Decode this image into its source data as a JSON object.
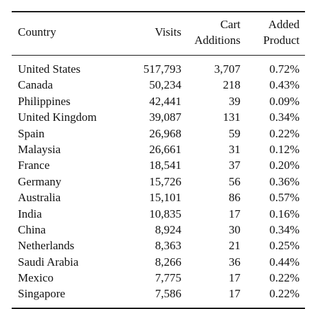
{
  "table": {
    "headers": {
      "country": "Country",
      "visits": "Visits",
      "cart_line1": "Cart",
      "cart_line2": "Additions",
      "added_line1": "Added",
      "added_line2": "Product"
    },
    "rows": [
      {
        "country": "United States",
        "visits": "517,793",
        "cart": "3,707",
        "added": "0.72%"
      },
      {
        "country": "Canada",
        "visits": "50,234",
        "cart": "218",
        "added": "0.43%"
      },
      {
        "country": "Philippines",
        "visits": "42,441",
        "cart": "39",
        "added": "0.09%"
      },
      {
        "country": "United Kingdom",
        "visits": "39,087",
        "cart": "131",
        "added": "0.34%"
      },
      {
        "country": "Spain",
        "visits": "26,968",
        "cart": "59",
        "added": "0.22%"
      },
      {
        "country": "Malaysia",
        "visits": "26,661",
        "cart": "31",
        "added": "0.12%"
      },
      {
        "country": "France",
        "visits": "18,541",
        "cart": "37",
        "added": "0.20%"
      },
      {
        "country": "Germany",
        "visits": "15,726",
        "cart": "56",
        "added": "0.36%"
      },
      {
        "country": "Australia",
        "visits": "15,101",
        "cart": "86",
        "added": "0.57%"
      },
      {
        "country": "India",
        "visits": "10,835",
        "cart": "17",
        "added": "0.16%"
      },
      {
        "country": "China",
        "visits": "8,924",
        "cart": "30",
        "added": "0.34%"
      },
      {
        "country": "Netherlands",
        "visits": "8,363",
        "cart": "21",
        "added": "0.25%"
      },
      {
        "country": "Saudi Arabia",
        "visits": "8,266",
        "cart": "36",
        "added": "0.44%"
      },
      {
        "country": "Mexico",
        "visits": "7,775",
        "cart": "17",
        "added": "0.22%"
      },
      {
        "country": "Singapore",
        "visits": "7,586",
        "cart": "17",
        "added": "0.22%"
      }
    ]
  }
}
